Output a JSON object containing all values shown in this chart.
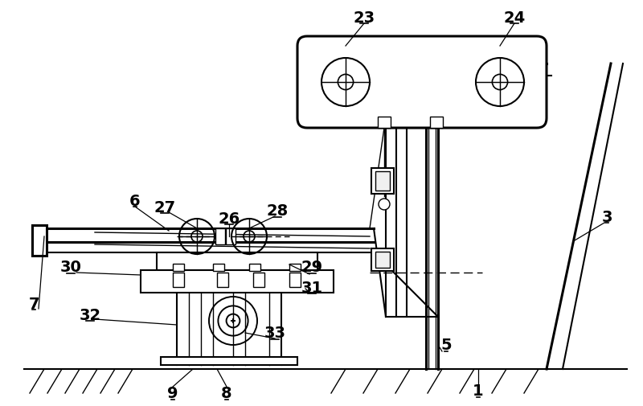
{
  "bg_color": "#ffffff",
  "line_color": "#000000",
  "figsize": [
    8.0,
    5.06
  ],
  "dpi": 100
}
